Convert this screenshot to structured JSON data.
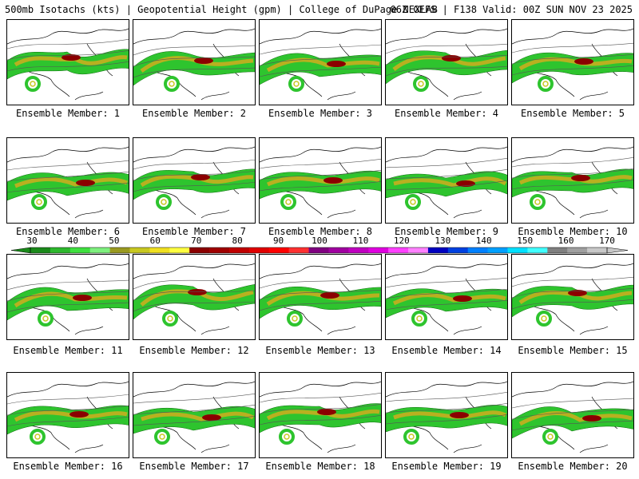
{
  "header": {
    "title_left": "500mb Isotachs (kts) | Geopotential Height (gpm) | College of DuPage NEXLAB",
    "title_right": "06Z GEFS | F138 Valid: 00Z SUN NOV 23 2025"
  },
  "panels": [
    {
      "label": "Ensemble Member: 1"
    },
    {
      "label": "Ensemble Member: 2"
    },
    {
      "label": "Ensemble Member: 3"
    },
    {
      "label": "Ensemble Member: 4"
    },
    {
      "label": "Ensemble Member: 5"
    },
    {
      "label": "Ensemble Member: 6"
    },
    {
      "label": "Ensemble Member: 7"
    },
    {
      "label": "Ensemble Member: 8"
    },
    {
      "label": "Ensemble Member: 9"
    },
    {
      "label": "Ensemble Member: 10"
    },
    {
      "label": "Ensemble Member: 11"
    },
    {
      "label": "Ensemble Member: 12"
    },
    {
      "label": "Ensemble Member: 13"
    },
    {
      "label": "Ensemble Member: 14"
    },
    {
      "label": "Ensemble Member: 15"
    },
    {
      "label": "Ensemble Member: 16"
    },
    {
      "label": "Ensemble Member: 17"
    },
    {
      "label": "Ensemble Member: 18"
    },
    {
      "label": "Ensemble Member: 19"
    },
    {
      "label": "Ensemble Member: 20"
    }
  ],
  "colorbar": {
    "labels": [
      "30",
      "40",
      "50",
      "60",
      "70",
      "80",
      "90",
      "100",
      "110",
      "120",
      "130",
      "140",
      "150",
      "160",
      "170"
    ],
    "colors": [
      "#1a8a1a",
      "#2db82d",
      "#3ee03e",
      "#7ef07e",
      "#9a9a20",
      "#c8c820",
      "#f0e020",
      "#ffff40",
      "#8b0000",
      "#a00000",
      "#c00000",
      "#e00000",
      "#ff0000",
      "#ff3030",
      "#800080",
      "#a000a0",
      "#c000c0",
      "#e000e0",
      "#ff40ff",
      "#ff80ff",
      "#0000c0",
      "#0040e0",
      "#0080ff",
      "#00a0ff",
      "#00e0ff",
      "#40ffff",
      "#808080",
      "#a0a0a0",
      "#c8c8c8"
    ]
  }
}
